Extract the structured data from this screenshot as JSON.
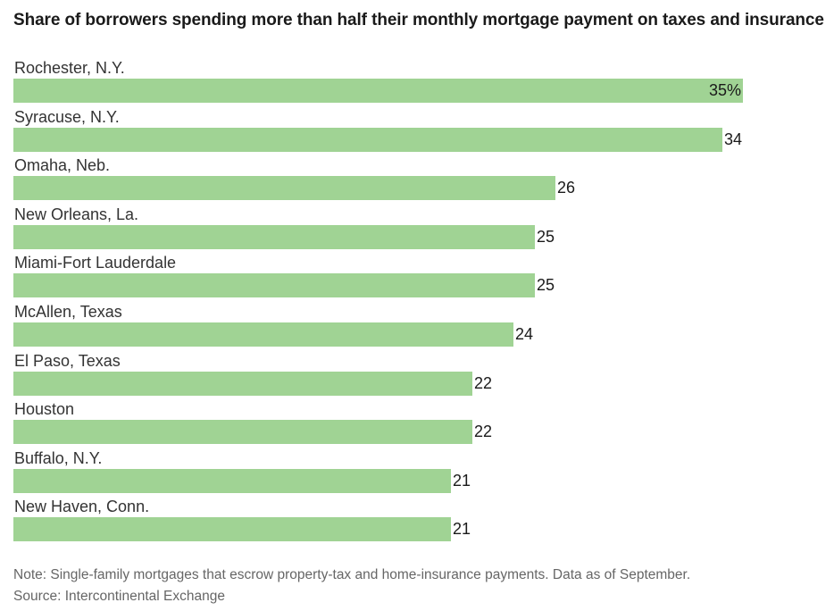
{
  "chart_data": {
    "type": "bar",
    "orientation": "horizontal",
    "title": "Share of borrowers spending more than half their monthly mortgage payment on taxes and insurance",
    "categories": [
      "Rochester, N.Y.",
      "Syracuse, N.Y.",
      "Omaha, Neb.",
      "New Orleans, La.",
      "Miami-Fort Lauderdale",
      "McAllen, Texas",
      "El Paso, Texas",
      "Houston",
      "Buffalo, N.Y.",
      "New Haven, Conn."
    ],
    "values": [
      35,
      34,
      26,
      25,
      25,
      24,
      22,
      22,
      21,
      21
    ],
    "value_labels": [
      "35%",
      "34",
      "26",
      "25",
      "25",
      "24",
      "22",
      "22",
      "21",
      "21"
    ],
    "unit": "%",
    "xlim": [
      0,
      35
    ],
    "grid": false,
    "bar_color": "#a0d394"
  },
  "footer": {
    "note": "Note: Single-family mortgages that escrow property-tax and home-insurance payments. Data as of September.",
    "source": "Source: Intercontinental Exchange"
  }
}
